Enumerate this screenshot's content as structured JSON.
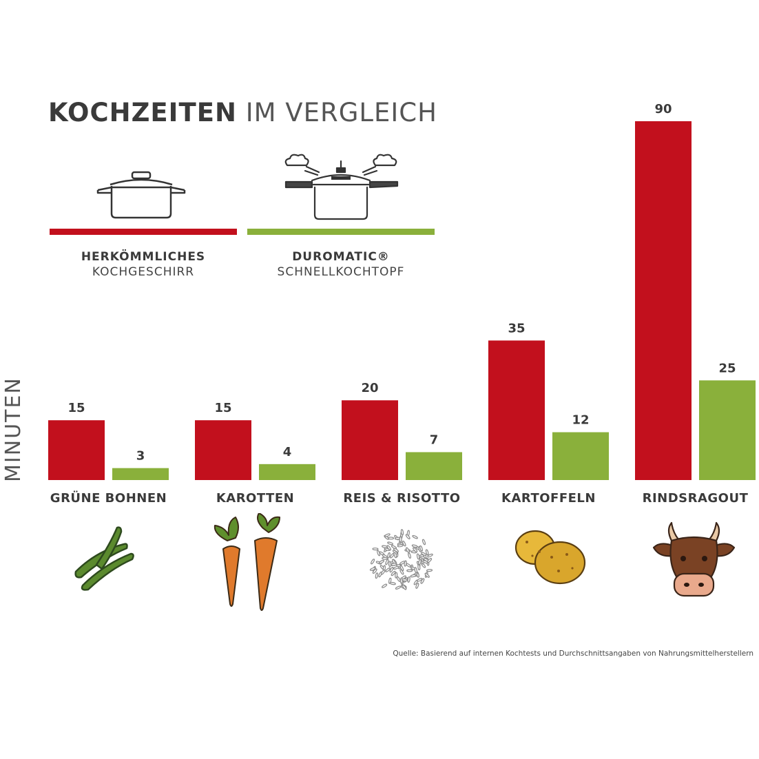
{
  "title_bold": "KOCHZEITEN",
  "title_light": "IM VERGLEICH",
  "legend": [
    {
      "line1": "HERKÖMMLICHES",
      "line2": "KOCHGESCHIRR",
      "color": "#c2101d",
      "icon": "pot-icon"
    },
    {
      "line1": "DUROMATIC®",
      "line2": "SCHNELLKOCHTOPF",
      "color": "#8ab03b",
      "icon": "pressure-cooker-icon"
    }
  ],
  "ylabel": "MINUTEN",
  "source": "Quelle: Basierend auf internen Kochtests und Durchschnittsangaben von Nahrungsmittelherstellern",
  "colors": {
    "red": "#c2101d",
    "green": "#8ab03b",
    "text": "#3a3a3a"
  },
  "chart_data": {
    "type": "bar",
    "title": "KOCHZEITEN IM VERGLEICH",
    "ylabel": "MINUTEN",
    "categories": [
      "GRÜNE BOHNEN",
      "KAROTTEN",
      "REIS & RISOTTO",
      "KARTOFFELN",
      "RINDSRAGOUT"
    ],
    "series": [
      {
        "name": "HERKÖMMLICHES KOCHGESCHIRR",
        "color": "#c2101d",
        "values": [
          15,
          15,
          20,
          35,
          90
        ]
      },
      {
        "name": "DUROMATIC® SCHNELLKOCHTOPF",
        "color": "#8ab03b",
        "values": [
          3,
          4,
          7,
          12,
          25
        ]
      }
    ],
    "ylim": [
      0,
      90
    ],
    "grid": false,
    "legend": "top-left",
    "category_icons": [
      "green-beans-icon",
      "carrots-icon",
      "rice-icon",
      "potatoes-icon",
      "cow-icon"
    ]
  }
}
